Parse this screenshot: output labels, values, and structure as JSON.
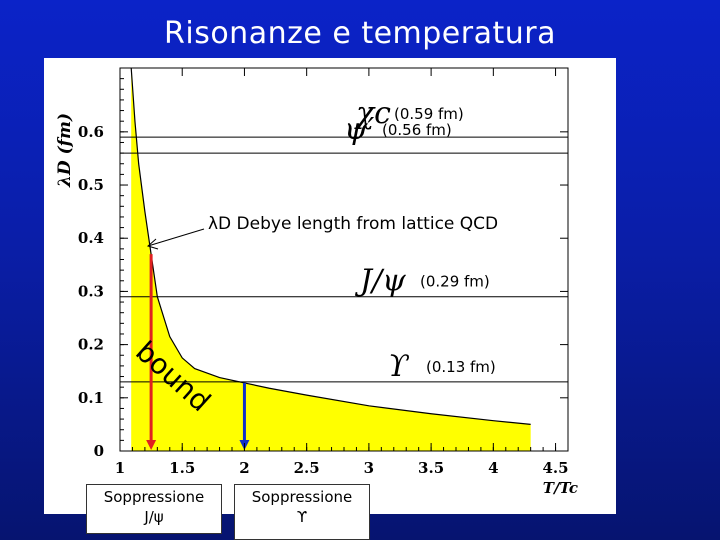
{
  "slide": {
    "title": "Risonanze e temperatura"
  },
  "chart_data": {
    "type": "line",
    "xlabel": "T/Tc",
    "ylabel": "λD (fm)",
    "xlim": [
      1,
      4.6
    ],
    "ylim": [
      0,
      0.72
    ],
    "x_ticks": [
      "1",
      "1.5",
      "2",
      "2.5",
      "3",
      "3.5",
      "4",
      "4.5"
    ],
    "y_ticks": [
      "0",
      "0.1",
      "0.2",
      "0.3",
      "0.4",
      "0.5",
      "0.6"
    ],
    "series": [
      {
        "name": "λD Debye length from lattice QCD",
        "x": [
          1.09,
          1.12,
          1.15,
          1.2,
          1.25,
          1.3,
          1.4,
          1.5,
          1.6,
          1.8,
          2.0,
          2.2,
          2.5,
          3.0,
          3.5,
          4.0,
          4.3
        ],
        "y": [
          0.74,
          0.62,
          0.54,
          0.45,
          0.37,
          0.29,
          0.215,
          0.175,
          0.155,
          0.138,
          0.128,
          0.118,
          0.105,
          0.085,
          0.07,
          0.057,
          0.05
        ]
      }
    ],
    "thresholds": [
      {
        "label": "χc",
        "note": "(0.59 fm)",
        "y": 0.59
      },
      {
        "label": "ψ′",
        "note": "(0.56 fm)",
        "y": 0.56
      },
      {
        "label": "J/ψ",
        "note": "(0.29 fm)",
        "y": 0.29
      },
      {
        "label": "ϒ",
        "note": "(0.13 fm)",
        "y": 0.13
      }
    ],
    "markers": [
      {
        "x": 1.25,
        "color": "#e02020"
      },
      {
        "x": 2.0,
        "color": "#1030c8"
      }
    ],
    "annotations": {
      "debye_label": "λD Debye length from lattice QCD",
      "bound_label": "bound"
    },
    "colors": {
      "fill": "#ffff00",
      "curve": "#000000"
    }
  },
  "captions": {
    "jpsi": {
      "line1": "Soppressione",
      "line2": "J/ψ"
    },
    "upsilon": {
      "line1": "Soppressione",
      "line2": "ϒ"
    }
  }
}
